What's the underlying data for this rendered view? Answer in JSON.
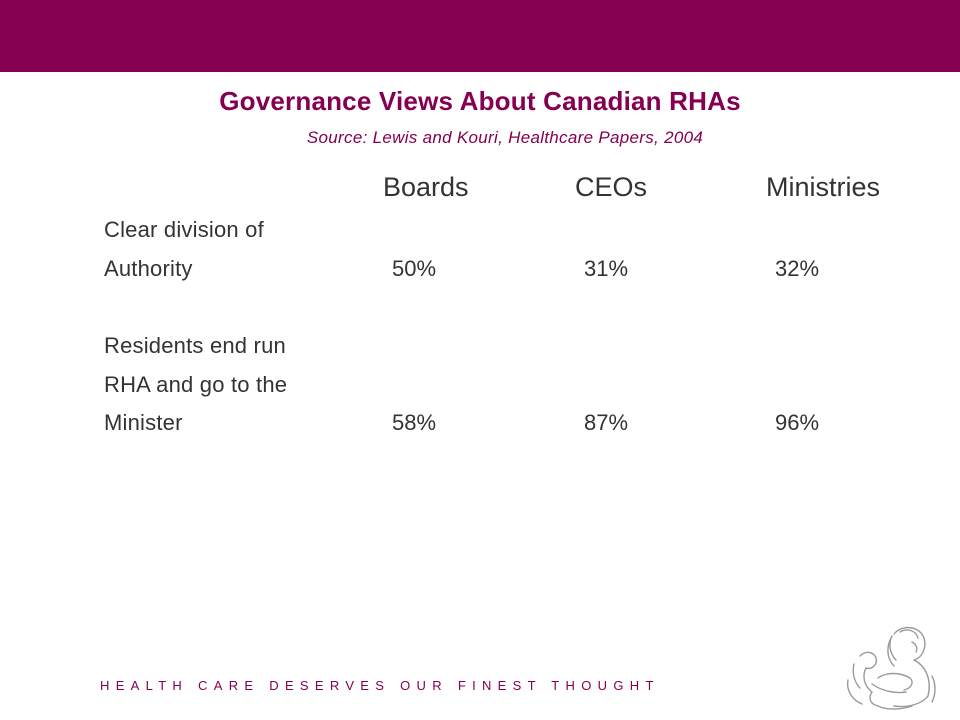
{
  "slide": {
    "title": "Governance Views About Canadian RHAs",
    "subtitle": "Source: Lewis and Kouri, Healthcare Papers, 2004",
    "accent_color": "#850050"
  },
  "table": {
    "columns": [
      "Boards",
      "CEOs",
      "Ministries"
    ],
    "rows": [
      {
        "label_lines": [
          "Clear division of",
          "Authority"
        ],
        "values": [
          "50%",
          "31%",
          "32%"
        ]
      },
      {
        "label_lines": [
          "Residents end run",
          "RHA and go to the",
          "Minister"
        ],
        "values": [
          "58%",
          "87%",
          "96%"
        ]
      }
    ]
  },
  "footer": {
    "tagline": "HEALTH CARE DESERVES OUR FINEST THOUGHT",
    "logo_icon": "mother-child-line-art-icon"
  }
}
